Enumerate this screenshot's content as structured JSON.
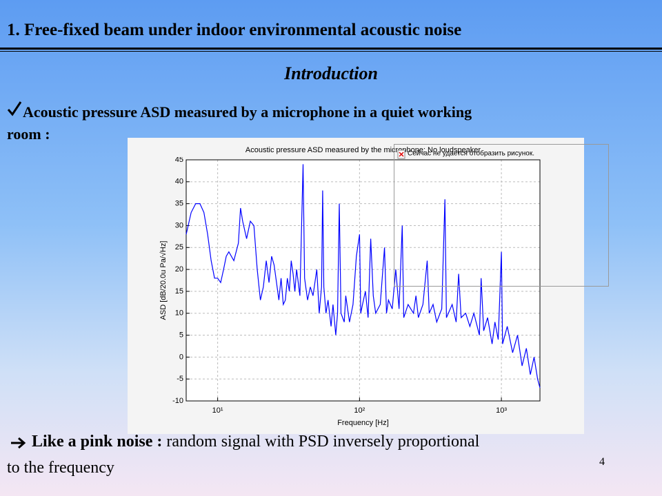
{
  "slide": {
    "title": "1. Free-fixed beam under indoor environmental acoustic noise",
    "subtitle": "Introduction",
    "bullet": "Acoustic pressure ASD measured by a microphone in a quiet working",
    "bullet_cont": "room :",
    "conclusion_bold": "Like a pink noise :",
    "conclusion_text": "random signal with PSD inversely proportional",
    "conclusion_cont": "to the frequency",
    "page_number": "4",
    "image_placeholder": "Сейчас не удается отобразить рисунок."
  },
  "chart_data": {
    "type": "line",
    "title": "Acoustic pressure ASD measured by the microphone: No loudspeaker",
    "x_label": "Frequency [Hz]",
    "y_label": "ASD [dB/20.0u Pa/√Hz]",
    "x_log": true,
    "grid": true,
    "xlim": [
      6,
      1870
    ],
    "ylim": [
      -10,
      45
    ],
    "xticks": [
      {
        "value": 10,
        "label": "10¹"
      },
      {
        "value": 100,
        "label": "10²"
      },
      {
        "value": 1000,
        "label": "10³"
      }
    ],
    "yticks": [
      -10,
      -5,
      0,
      5,
      10,
      15,
      20,
      25,
      30,
      35,
      40,
      45
    ],
    "x": [
      6,
      6.5,
      7,
      7.5,
      8,
      8.5,
      9,
      9.5,
      10,
      10.5,
      11,
      11.5,
      12,
      13,
      14,
      14.5,
      15,
      16,
      17,
      18,
      19,
      20,
      21,
      22,
      23,
      24,
      25,
      26,
      27,
      28,
      29,
      30,
      31,
      32,
      33,
      34,
      35,
      36,
      38,
      40,
      41,
      43,
      45,
      47,
      50,
      52,
      54,
      55,
      56,
      58,
      60,
      63,
      65,
      68,
      70,
      72,
      74,
      78,
      80,
      85,
      90,
      95,
      100,
      102,
      105,
      110,
      115,
      120,
      125,
      130,
      140,
      150,
      155,
      160,
      170,
      180,
      190,
      200,
      205,
      220,
      240,
      250,
      260,
      280,
      300,
      310,
      330,
      350,
      380,
      400,
      410,
      450,
      480,
      500,
      520,
      560,
      600,
      640,
      700,
      720,
      750,
      800,
      860,
      900,
      950,
      1000,
      1020,
      1100,
      1200,
      1300,
      1400,
      1500,
      1600,
      1700,
      1800,
      1870
    ],
    "series": [
      {
        "name": "ASD",
        "color": "#0000ff",
        "values": [
          28,
          33,
          35,
          35,
          33,
          28,
          22,
          18,
          18,
          17,
          20,
          23,
          24,
          22,
          26,
          34,
          31,
          27,
          31,
          30,
          20,
          13,
          16,
          22,
          17,
          23,
          21,
          17,
          13,
          18,
          12,
          13,
          18,
          15,
          22,
          19,
          15,
          20,
          14,
          44,
          18,
          13,
          16,
          14,
          20,
          10,
          16,
          38,
          16,
          10,
          13,
          7,
          12,
          5,
          10,
          35,
          10,
          8,
          14,
          8,
          12,
          23,
          28,
          10,
          12,
          15,
          9,
          27,
          14,
          10,
          12,
          25,
          10,
          13,
          11,
          20,
          11,
          30,
          9,
          12,
          10,
          14,
          9,
          12,
          22,
          10,
          12,
          8,
          11,
          36,
          9,
          12,
          8,
          19,
          9,
          10,
          7,
          10,
          5,
          18,
          6,
          9,
          3,
          8,
          4,
          24,
          3,
          7,
          1,
          5,
          -2,
          2,
          -4,
          0,
          -5,
          -7
        ]
      }
    ]
  }
}
